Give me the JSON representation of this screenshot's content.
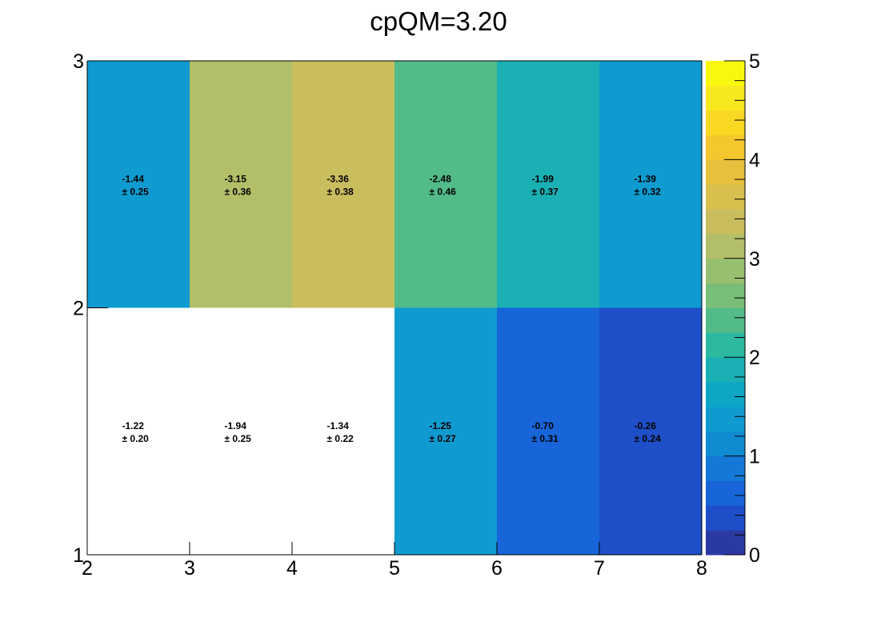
{
  "chart_data": {
    "type": "heatmap",
    "title": "cpQM=3.20",
    "xlabel": "",
    "ylabel": "",
    "x_bin_edges": [
      2,
      3,
      4,
      5,
      6,
      7,
      8
    ],
    "y_bin_edges": [
      1,
      2,
      3
    ],
    "xlim": [
      2,
      8
    ],
    "ylim": [
      1,
      3
    ],
    "x_ticks": [
      "2",
      "3",
      "4",
      "5",
      "6",
      "7",
      "8"
    ],
    "y_ticks": [
      "1",
      "2",
      "3"
    ],
    "colorbar": {
      "range": [
        0,
        5
      ],
      "ticks": [
        "0",
        "1",
        "2",
        "3",
        "4",
        "5"
      ],
      "palette": [
        "#2b3aa3",
        "#1f4fc8",
        "#1765d8",
        "#1478d6",
        "#108bd2",
        "#0f9bd0",
        "#0ea6c4",
        "#1ab0b4",
        "#2db8a0",
        "#52bb88",
        "#78bd78",
        "#98bf70",
        "#b3be68",
        "#c9bd5e",
        "#d9bf4d",
        "#e7c13d",
        "#f4c72e",
        "#f8d823",
        "#f8e81e",
        "#f8f80f"
      ]
    },
    "cells": [
      {
        "x": 2,
        "y": 2,
        "value": -1.44,
        "error": 0.25,
        "z": 1.44,
        "text": "-1.44",
        "err_text": "± 0.25"
      },
      {
        "x": 3,
        "y": 2,
        "value": -3.15,
        "error": 0.36,
        "z": 3.15,
        "text": "-3.15",
        "err_text": "± 0.36"
      },
      {
        "x": 4,
        "y": 2,
        "value": -3.36,
        "error": 0.38,
        "z": 3.36,
        "text": "-3.36",
        "err_text": "± 0.38"
      },
      {
        "x": 5,
        "y": 2,
        "value": -2.48,
        "error": 0.46,
        "z": 2.48,
        "text": "-2.48",
        "err_text": "± 0.46"
      },
      {
        "x": 6,
        "y": 2,
        "value": -1.99,
        "error": 0.37,
        "z": 1.99,
        "text": "-1.99",
        "err_text": "± 0.37"
      },
      {
        "x": 7,
        "y": 2,
        "value": -1.39,
        "error": 0.32,
        "z": 1.39,
        "text": "-1.39",
        "err_text": "± 0.32"
      },
      {
        "x": 2,
        "y": 1,
        "value": -1.22,
        "error": 0.2,
        "z": null,
        "text": "-1.22",
        "err_text": "± 0.20"
      },
      {
        "x": 3,
        "y": 1,
        "value": -1.94,
        "error": 0.25,
        "z": null,
        "text": "-1.94",
        "err_text": "± 0.25"
      },
      {
        "x": 4,
        "y": 1,
        "value": -1.34,
        "error": 0.22,
        "z": null,
        "text": "-1.34",
        "err_text": "± 0.22"
      },
      {
        "x": 5,
        "y": 1,
        "value": -1.25,
        "error": 0.27,
        "z": 1.25,
        "text": "-1.25",
        "err_text": "± 0.27"
      },
      {
        "x": 6,
        "y": 1,
        "value": -0.7,
        "error": 0.31,
        "z": 0.7,
        "text": "-0.70",
        "err_text": "± 0.31"
      },
      {
        "x": 7,
        "y": 1,
        "value": -0.26,
        "error": 0.24,
        "z": 0.26,
        "text": "-0.26",
        "err_text": "± 0.24"
      }
    ]
  }
}
